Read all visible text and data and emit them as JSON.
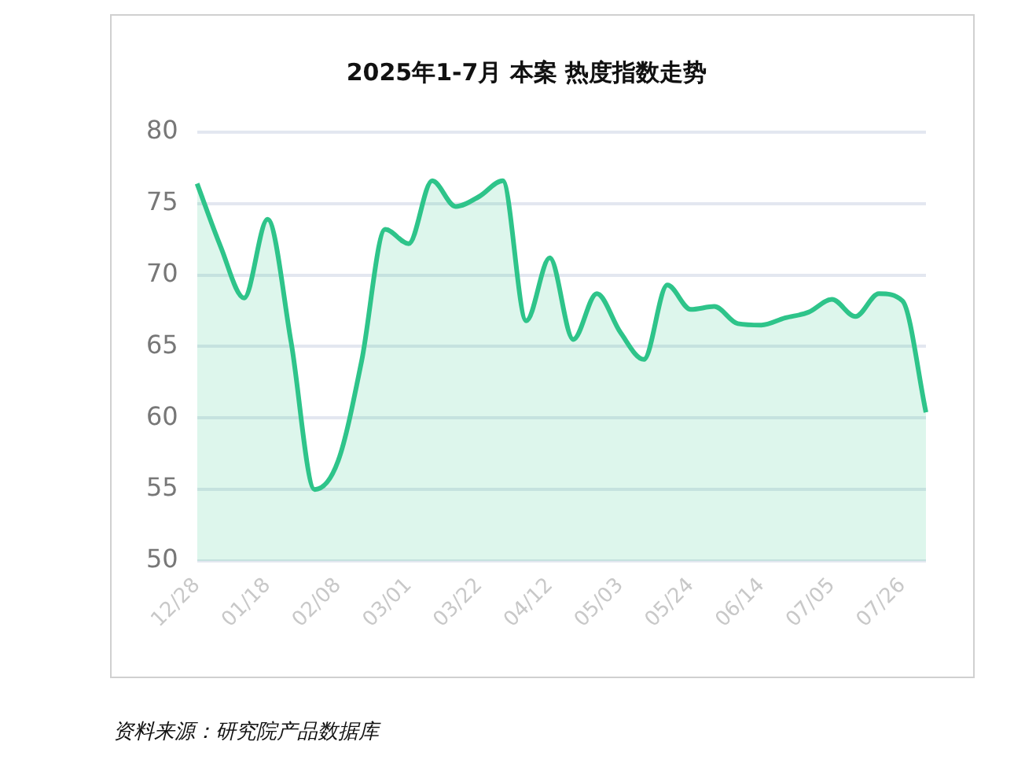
{
  "chart_data": {
    "type": "area",
    "title": "2025年1-7月 本案 热度指数走势",
    "categories": [
      "12/28",
      null,
      null,
      "01/18",
      null,
      null,
      "02/08",
      null,
      null,
      "03/01",
      null,
      null,
      "03/22",
      null,
      null,
      "04/12",
      null,
      null,
      "05/03",
      null,
      null,
      "05/24",
      null,
      null,
      "06/14",
      null,
      null,
      "07/05",
      null,
      null,
      "07/26",
      null
    ],
    "series": [
      {
        "color": "#2ec48a",
        "values": [
          76.4,
          72,
          68.4,
          73.9,
          65.3,
          55,
          57,
          64,
          73.2,
          72.2,
          76.6,
          74.8,
          75.5,
          76.6,
          66.8,
          71.2,
          65.5,
          68.7,
          66,
          64.1,
          69.3,
          67.6,
          67.8,
          66.6,
          66.5,
          67,
          67.4,
          68.3,
          67.1,
          68.7,
          68.2,
          60.4
        ]
      }
    ],
    "ylim": [
      50,
      80
    ],
    "yticks": [
      50,
      55,
      60,
      65,
      70,
      75,
      80
    ],
    "grid": "y",
    "legend": false,
    "marker": "none",
    "line_style": "solid",
    "annotations": [
      "资料来源：研究院产品数据库"
    ]
  }
}
